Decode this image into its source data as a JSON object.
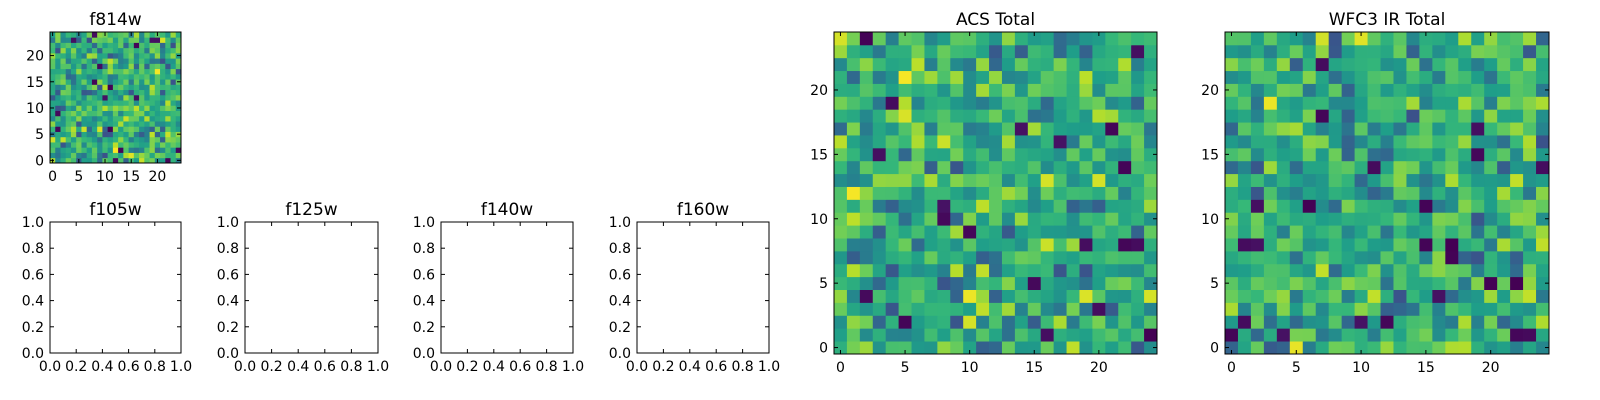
{
  "chart_data": [
    {
      "type": "heatmap",
      "title": "f814w",
      "xlabel": "",
      "ylabel": "",
      "colormap": "viridis",
      "grid": false,
      "xlim": [
        -0.5,
        24.5
      ],
      "ylim": [
        -0.5,
        24.5
      ],
      "xticks": [
        0,
        5,
        10,
        15,
        20
      ],
      "yticks": [
        0,
        5,
        10,
        15,
        20
      ],
      "shape": [
        25,
        25
      ],
      "z_range": [
        0,
        1
      ]
    },
    {
      "type": "heatmap",
      "title": "f105w",
      "xlabel": "",
      "ylabel": "",
      "empty": true,
      "xlim": [
        0,
        1
      ],
      "ylim": [
        0,
        1
      ],
      "xticks": [
        "0.0",
        "0.2",
        "0.4",
        "0.6",
        "0.8",
        "1.0"
      ],
      "yticks": [
        "0.0",
        "0.2",
        "0.4",
        "0.6",
        "0.8",
        "1.0"
      ]
    },
    {
      "type": "heatmap",
      "title": "f125w",
      "xlabel": "",
      "ylabel": "",
      "empty": true,
      "xlim": [
        0,
        1
      ],
      "ylim": [
        0,
        1
      ],
      "xticks": [
        "0.0",
        "0.2",
        "0.4",
        "0.6",
        "0.8",
        "1.0"
      ],
      "yticks": [
        "0.0",
        "0.2",
        "0.4",
        "0.6",
        "0.8",
        "1.0"
      ]
    },
    {
      "type": "heatmap",
      "title": "f140w",
      "xlabel": "",
      "ylabel": "",
      "empty": true,
      "xlim": [
        0,
        1
      ],
      "ylim": [
        0,
        1
      ],
      "xticks": [
        "0.0",
        "0.2",
        "0.4",
        "0.6",
        "0.8",
        "1.0"
      ],
      "yticks": [
        "0.0",
        "0.2",
        "0.4",
        "0.6",
        "0.8",
        "1.0"
      ]
    },
    {
      "type": "heatmap",
      "title": "f160w",
      "xlabel": "",
      "ylabel": "",
      "empty": true,
      "xlim": [
        0,
        1
      ],
      "ylim": [
        0,
        1
      ],
      "xticks": [
        "0.0",
        "0.2",
        "0.4",
        "0.6",
        "0.8",
        "1.0"
      ],
      "yticks": [
        "0.0",
        "0.2",
        "0.4",
        "0.6",
        "0.8",
        "1.0"
      ]
    },
    {
      "type": "heatmap",
      "title": "ACS Total",
      "xlabel": "",
      "ylabel": "",
      "colormap": "viridis",
      "grid": false,
      "xlim": [
        -0.5,
        24.5
      ],
      "ylim": [
        -0.5,
        24.5
      ],
      "xticks": [
        0,
        5,
        10,
        15,
        20
      ],
      "yticks": [
        0,
        5,
        10,
        15,
        20
      ],
      "shape": [
        25,
        25
      ],
      "z_range": [
        0,
        1
      ]
    },
    {
      "type": "heatmap",
      "title": "WFC3 IR Total",
      "xlabel": "",
      "ylabel": "",
      "colormap": "viridis",
      "grid": false,
      "xlim": [
        -0.5,
        24.5
      ],
      "ylim": [
        -0.5,
        24.5
      ],
      "xticks": [
        0,
        5,
        10,
        15,
        20
      ],
      "yticks": [
        0,
        5,
        10,
        15,
        20
      ],
      "shape": [
        25,
        25
      ],
      "z_range": [
        0,
        1
      ]
    }
  ]
}
